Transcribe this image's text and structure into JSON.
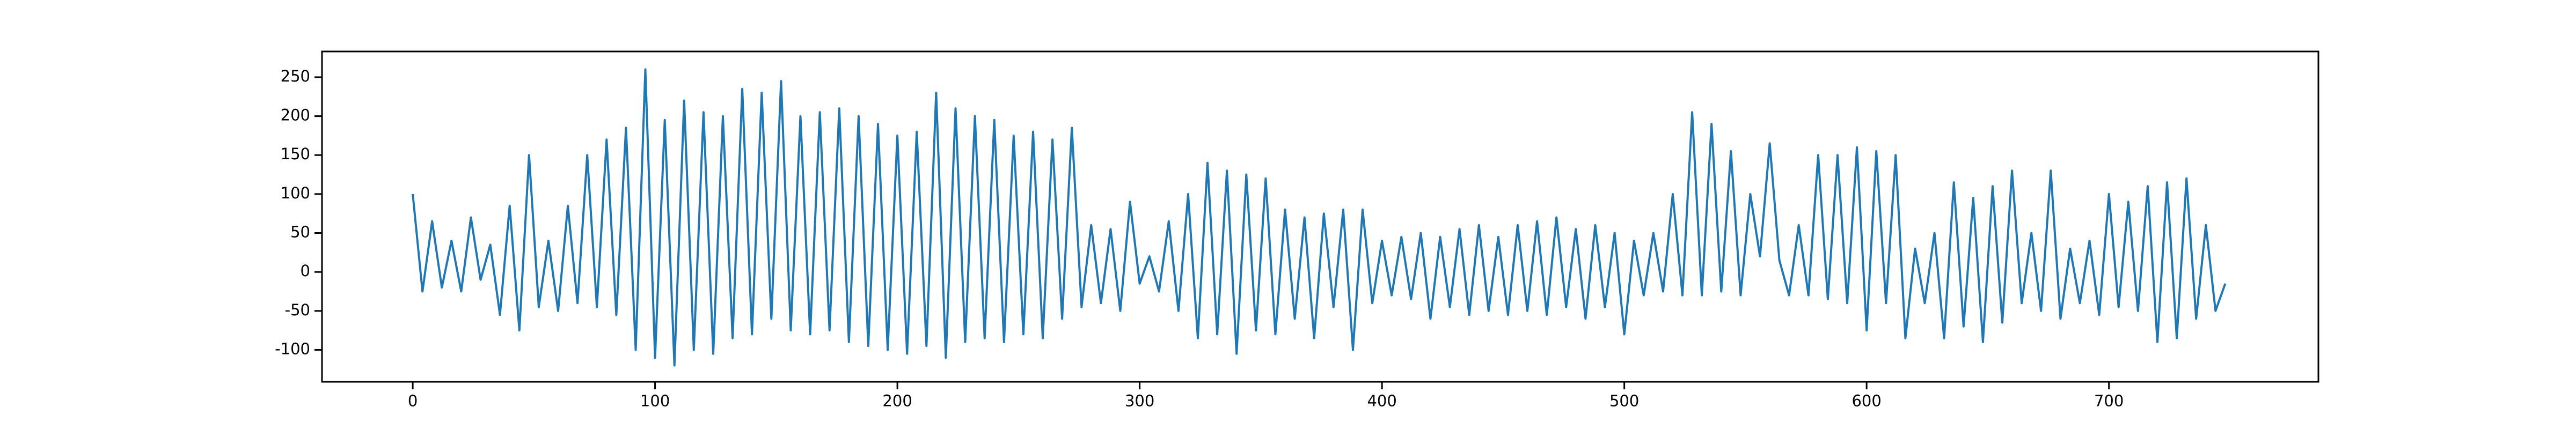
{
  "chart_data": {
    "type": "line",
    "x": [
      0,
      4,
      8,
      12,
      16,
      20,
      24,
      28,
      32,
      36,
      40,
      44,
      48,
      52,
      56,
      60,
      64,
      68,
      72,
      76,
      80,
      84,
      88,
      92,
      96,
      100,
      104,
      108,
      112,
      116,
      120,
      124,
      128,
      132,
      136,
      140,
      144,
      148,
      152,
      156,
      160,
      164,
      168,
      172,
      176,
      180,
      184,
      188,
      192,
      196,
      200,
      204,
      208,
      212,
      216,
      220,
      224,
      228,
      232,
      236,
      240,
      244,
      248,
      252,
      256,
      260,
      264,
      268,
      272,
      276,
      280,
      284,
      288,
      292,
      296,
      300,
      304,
      308,
      312,
      316,
      320,
      324,
      328,
      332,
      336,
      340,
      344,
      348,
      352,
      356,
      360,
      364,
      368,
      372,
      376,
      380,
      384,
      388,
      392,
      396,
      400,
      404,
      408,
      412,
      416,
      420,
      424,
      428,
      432,
      436,
      440,
      444,
      448,
      452,
      456,
      460,
      464,
      468,
      472,
      476,
      480,
      484,
      488,
      492,
      496,
      500,
      504,
      508,
      512,
      516,
      520,
      524,
      528,
      532,
      536,
      540,
      544,
      548,
      552,
      556,
      560,
      564,
      568,
      572,
      576,
      580,
      584,
      588,
      592,
      596,
      600,
      604,
      608,
      612,
      616,
      620,
      624,
      628,
      632,
      636,
      640,
      644,
      648,
      652,
      656,
      660,
      664,
      668,
      672,
      676,
      680,
      684,
      688,
      692,
      696,
      700,
      704,
      708,
      712,
      716,
      720,
      724,
      728,
      732,
      736,
      740,
      744,
      748
    ],
    "series": [
      {
        "color": "#1f77b4",
        "values": [
          100,
          -25,
          65,
          -20,
          40,
          -25,
          70,
          -10,
          35,
          -55,
          85,
          -75,
          150,
          -45,
          40,
          -50,
          85,
          -40,
          150,
          -45,
          170,
          -55,
          185,
          -100,
          260,
          -110,
          195,
          -120,
          220,
          -100,
          205,
          -105,
          200,
          -85,
          235,
          -80,
          230,
          -60,
          245,
          -75,
          200,
          -80,
          205,
          -75,
          210,
          -90,
          200,
          -95,
          190,
          -100,
          175,
          -105,
          180,
          -95,
          230,
          -110,
          210,
          -90,
          200,
          -85,
          195,
          -90,
          175,
          -80,
          180,
          -85,
          170,
          -60,
          185,
          -45,
          60,
          -40,
          55,
          -50,
          90,
          -15,
          20,
          -25,
          65,
          -50,
          100,
          -85,
          140,
          -80,
          130,
          -105,
          125,
          -75,
          120,
          -80,
          80,
          -60,
          70,
          -85,
          75,
          -45,
          80,
          -100,
          80,
          -40,
          40,
          -30,
          45,
          -35,
          50,
          -60,
          45,
          -45,
          55,
          -55,
          60,
          -50,
          45,
          -55,
          60,
          -50,
          65,
          -55,
          70,
          -45,
          55,
          -60,
          60,
          -45,
          50,
          -80,
          40,
          -30,
          50,
          -25,
          100,
          -30,
          205,
          -30,
          190,
          -25,
          155,
          -30,
          100,
          20,
          165,
          15,
          -30,
          60,
          -30,
          150,
          -35,
          150,
          -40,
          160,
          -75,
          155,
          -40,
          150,
          -85,
          30,
          -40,
          50,
          -85,
          115,
          -70,
          95,
          -90,
          110,
          -65,
          130,
          -40,
          50,
          -50,
          130,
          -60,
          30,
          -40,
          40,
          -55,
          100,
          -45,
          90,
          -50,
          110,
          -90,
          115,
          -85,
          120,
          -60,
          60,
          -50,
          -15
        ]
      }
    ],
    "xlim": [
      -37.45,
      786.45
    ],
    "ylim": [
      -141,
      283
    ],
    "xticks": [
      0,
      100,
      200,
      300,
      400,
      500,
      600,
      700
    ],
    "yticks": [
      -100,
      -50,
      0,
      50,
      100,
      150,
      200,
      250
    ],
    "grid": false
  }
}
